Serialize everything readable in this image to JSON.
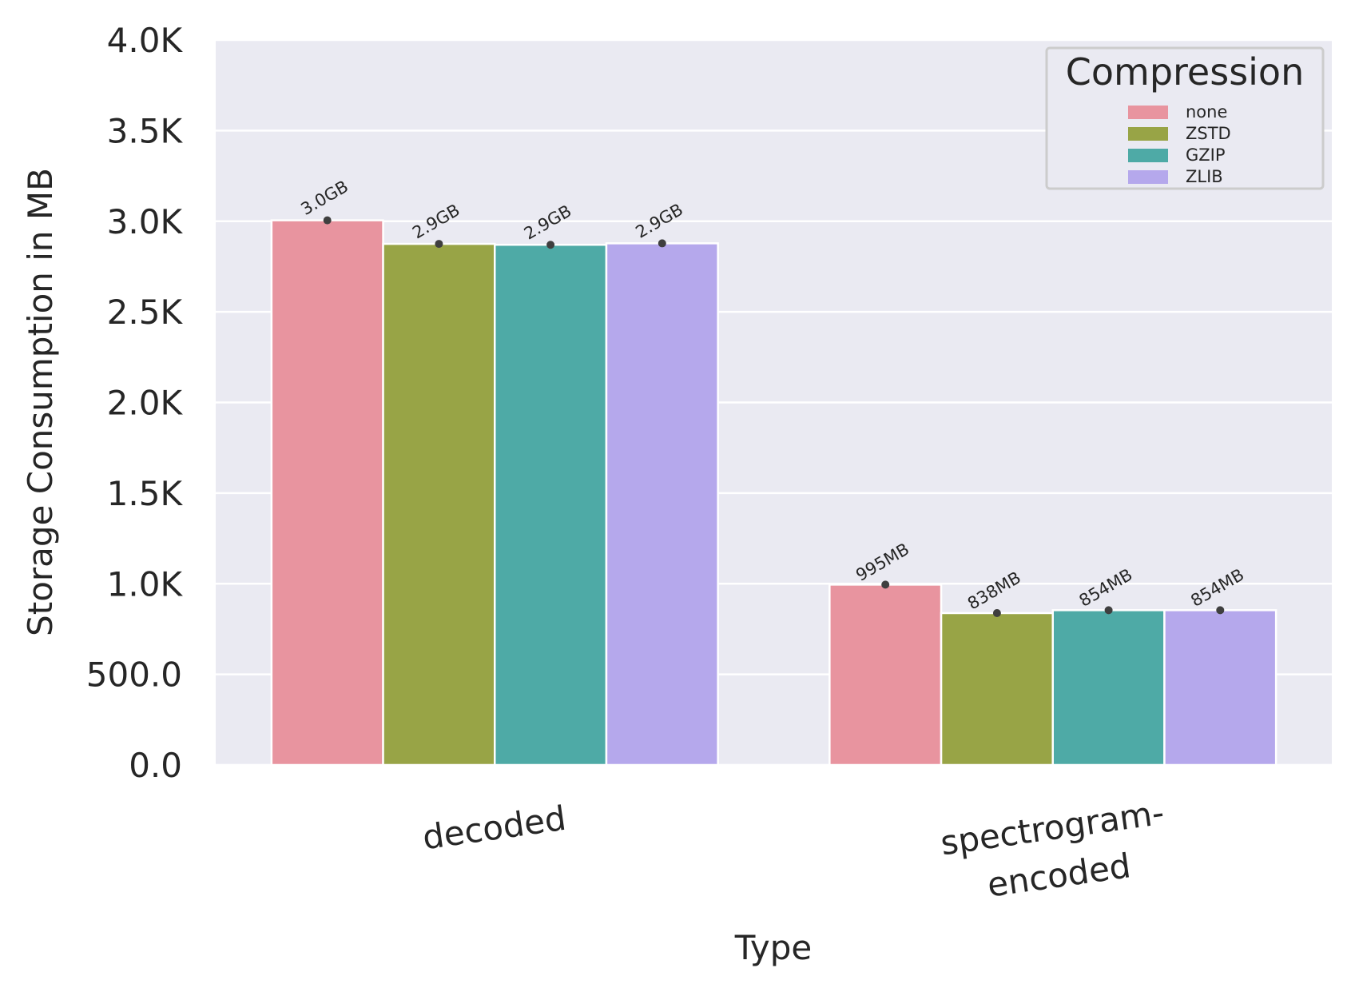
{
  "chart_data": {
    "type": "bar",
    "title": "",
    "xlabel": "Type",
    "ylabel": "Storage Consumption in MB",
    "ylim": [
      0,
      4000
    ],
    "yticks": [
      0,
      500,
      1000,
      1500,
      2000,
      2500,
      3000,
      3500,
      4000
    ],
    "ytick_labels": [
      "0.0",
      "500.0",
      "1.0K",
      "1.5K",
      "2.0K",
      "2.5K",
      "3.0K",
      "3.5K",
      "4.0K"
    ],
    "categories": [
      {
        "lines": [
          "decoded"
        ]
      },
      {
        "lines": [
          "spectrogram-",
          "encoded"
        ]
      }
    ],
    "grid": true,
    "legend": {
      "title": "Compression",
      "position": "top-right"
    },
    "series": [
      {
        "name": "none",
        "color": "#e8949f",
        "values": [
          3005,
          995
        ],
        "labels": [
          "3.0GB",
          "995MB"
        ]
      },
      {
        "name": "ZSTD",
        "color": "#98a446",
        "values": [
          2875,
          838
        ],
        "labels": [
          "2.9GB",
          "838MB"
        ]
      },
      {
        "name": "GZIP",
        "color": "#4eaaa6",
        "values": [
          2870,
          854
        ],
        "labels": [
          "2.9GB",
          "854MB"
        ]
      },
      {
        "name": "ZLIB",
        "color": "#b5a8ec",
        "values": [
          2878,
          854
        ],
        "labels": [
          "2.9GB",
          "854MB"
        ]
      }
    ]
  }
}
